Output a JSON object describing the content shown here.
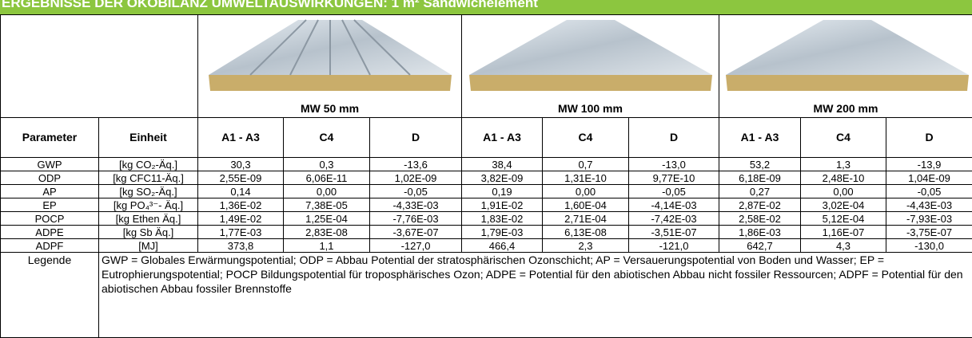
{
  "title": "ERGEBNISSE DER ÖKOBILANZ UMWELTAUSWIRKUNGEN: 1 m² Sandwichelement",
  "products": [
    "MW 50 mm",
    "MW 100 mm",
    "MW 200 mm"
  ],
  "header": [
    "Parameter",
    "Einheit",
    "A1 - A3",
    "C4",
    "D",
    "A1 - A3",
    "C4",
    "D",
    "A1 - A3",
    "C4",
    "D"
  ],
  "rows": [
    [
      "GWP",
      "[kg CO₂-Äq.]",
      "30,3",
      "0,3",
      "-13,6",
      "38,4",
      "0,7",
      "-13,0",
      "53,2",
      "1,3",
      "-13,9"
    ],
    [
      "ODP",
      "[kg CFC11-Äq.]",
      "2,55E-09",
      "6,06E-11",
      "1,02E-09",
      "3,82E-09",
      "1,31E-10",
      "9,77E-10",
      "6,18E-09",
      "2,48E-10",
      "1,04E-09"
    ],
    [
      "AP",
      "[kg SO₂-Äq.]",
      "0,14",
      "0,00",
      "-0,05",
      "0,19",
      "0,00",
      "-0,05",
      "0,27",
      "0,00",
      "-0,05"
    ],
    [
      "EP",
      "[kg PO₄³⁻- Äq.]",
      "1,36E-02",
      "7,38E-05",
      "-4,33E-03",
      "1,91E-02",
      "1,60E-04",
      "-4,14E-03",
      "2,87E-02",
      "3,02E-04",
      "-4,43E-03"
    ],
    [
      "POCP",
      "[kg Ethen Äq.]",
      "1,49E-02",
      "1,25E-04",
      "-7,76E-03",
      "1,83E-02",
      "2,71E-04",
      "-7,42E-03",
      "2,58E-02",
      "5,12E-04",
      "-7,93E-03"
    ],
    [
      "ADPE",
      "[kg Sb Äq.]",
      "1,77E-03",
      "2,83E-08",
      "-3,67E-07",
      "1,79E-03",
      "6,13E-08",
      "-3,51E-07",
      "1,86E-03",
      "1,16E-07",
      "-3,75E-07"
    ],
    [
      "ADPF",
      "[MJ]",
      "373,8",
      "1,1",
      "-127,0",
      "466,4",
      "2,3",
      "-121,0",
      "642,7",
      "4,3",
      "-130,0"
    ]
  ],
  "legend": {
    "label": "Legende",
    "text": "GWP = Globales Erwärmungspotential; ODP = Abbau Potential der stratosphärischen Ozonschicht; AP = Versauerungspotential von Boden und Wasser; EP = Eutrophierungspotential; POCP Bildungspotential für troposphärisches Ozon; ADPE = Potential für den abiotischen Abbau nicht fossiler Ressourcen; ADPF = Potential für den abiotischen Abbau fossiler Brennstoffe"
  }
}
